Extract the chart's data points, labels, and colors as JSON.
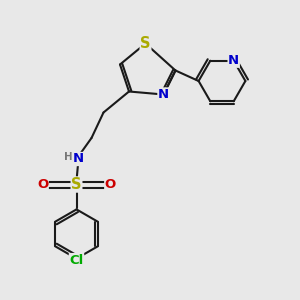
{
  "bg_color": "#e8e8e8",
  "bond_color": "#1a1a1a",
  "bond_width": 1.5,
  "atom_colors": {
    "S_thiazole": "#aaaa00",
    "N_thiazole": "#0000cc",
    "N_pyridine": "#0000cc",
    "N_sulfonamide": "#0000cc",
    "H": "#777777",
    "S_sulfonyl": "#aaaa00",
    "O": "#cc0000",
    "Cl": "#00aa00",
    "C": "#1a1a1a"
  },
  "font_size": 9.5,
  "small_font": 7.5,
  "xlim": [
    0,
    10
  ],
  "ylim": [
    0,
    10
  ]
}
